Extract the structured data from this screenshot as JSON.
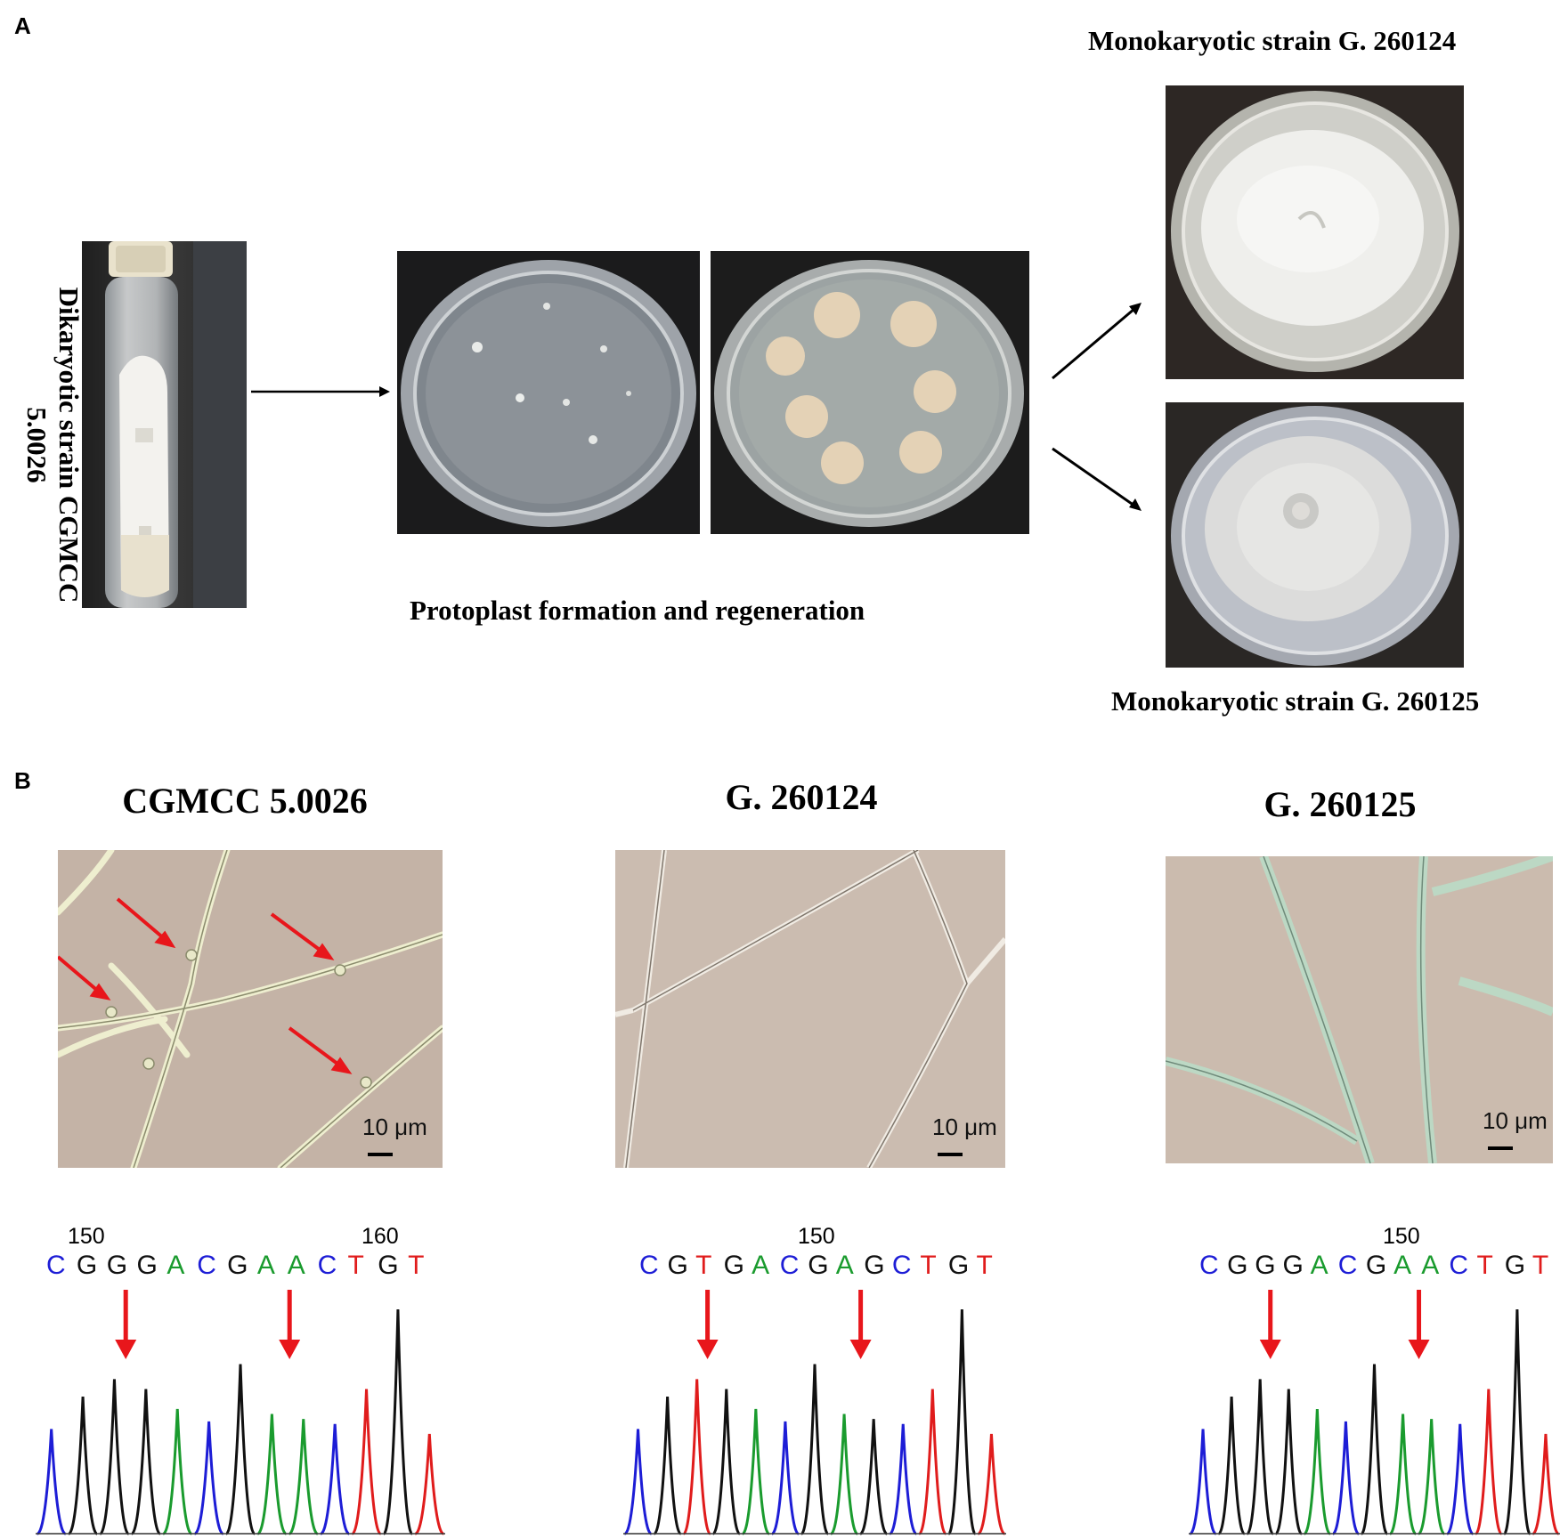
{
  "panel_a": {
    "letter": "A",
    "dikaryotic_label": "Dikaryotic strain CGMCC 5.0026",
    "protoplast_caption": "Protoplast formation and regeneration",
    "mono_top_label": "Monokaryotic strain G. 260124",
    "mono_bottom_label": "Monokaryotic strain G. 260125"
  },
  "panel_b": {
    "letter": "B",
    "strains": [
      {
        "title": "CGMCC 5.0026",
        "scale": "10 μm",
        "positions": [
          "150",
          "160"
        ],
        "sequence": [
          "C",
          "G",
          "G",
          "G",
          "A",
          "C",
          "G",
          "A",
          "A",
          "C",
          "T",
          "G",
          "T"
        ]
      },
      {
        "title": "G. 260124",
        "scale": "10 μm",
        "positions": [
          "150"
        ],
        "sequence": [
          "C",
          "G",
          "T",
          "G",
          "A",
          "C",
          "G",
          "A",
          "G",
          "C",
          "T",
          "G",
          "T"
        ]
      },
      {
        "title": "G. 260125",
        "scale": "10 μm",
        "positions": [
          "150"
        ],
        "sequence": [
          "C",
          "G",
          "G",
          "G",
          "A",
          "C",
          "G",
          "A",
          "A",
          "C",
          "T",
          "G",
          "T"
        ]
      }
    ]
  },
  "colors": {
    "A": "#1a9b2e",
    "C": "#1d1dd6",
    "G": "#111111",
    "T": "#e01c1c",
    "arrow": "#e8161b"
  }
}
